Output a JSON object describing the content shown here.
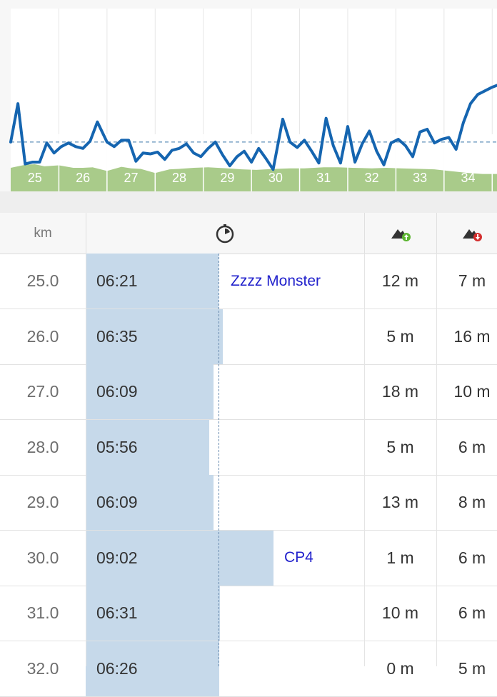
{
  "chart_data": {
    "type": "line",
    "x_tick_labels": [
      "25",
      "26",
      "27",
      "28",
      "29",
      "30",
      "31",
      "32",
      "33",
      "34"
    ],
    "xlim": [
      24.5,
      34.6
    ],
    "pace_series": {
      "x": [
        24.5,
        24.65,
        24.8,
        24.95,
        25.1,
        25.25,
        25.4,
        25.55,
        25.7,
        25.85,
        26.0,
        26.15,
        26.3,
        26.5,
        26.65,
        26.8,
        26.95,
        27.1,
        27.25,
        27.4,
        27.55,
        27.7,
        27.85,
        28.0,
        28.15,
        28.3,
        28.45,
        28.6,
        28.75,
        28.9,
        29.05,
        29.2,
        29.35,
        29.5,
        29.65,
        29.8,
        29.95,
        30.15,
        30.3,
        30.45,
        30.6,
        30.75,
        30.9,
        31.05,
        31.2,
        31.35,
        31.5,
        31.65,
        31.8,
        31.95,
        32.1,
        32.25,
        32.4,
        32.55,
        32.7,
        32.85,
        33.0,
        33.15,
        33.3,
        33.45,
        33.6,
        33.75,
        33.9,
        34.05,
        34.2,
        34.35,
        34.5,
        34.6
      ],
      "y": [
        0.46,
        0.88,
        0.22,
        0.24,
        0.24,
        0.45,
        0.34,
        0.41,
        0.45,
        0.41,
        0.39,
        0.47,
        0.68,
        0.46,
        0.41,
        0.48,
        0.48,
        0.25,
        0.34,
        0.33,
        0.35,
        0.27,
        0.37,
        0.39,
        0.44,
        0.34,
        0.3,
        0.39,
        0.46,
        0.32,
        0.2,
        0.3,
        0.36,
        0.24,
        0.39,
        0.28,
        0.16,
        0.71,
        0.46,
        0.4,
        0.48,
        0.36,
        0.23,
        0.72,
        0.42,
        0.23,
        0.63,
        0.24,
        0.44,
        0.58,
        0.36,
        0.21,
        0.45,
        0.49,
        0.42,
        0.3,
        0.57,
        0.6,
        0.45,
        0.49,
        0.51,
        0.38,
        0.67,
        0.88,
        0.98,
        1.02,
        1.06,
        1.08
      ],
      "color": "#1565b0",
      "reference_line": 0.46
    },
    "elevation_series": {
      "color": "#a9cb8a",
      "x": [
        24.5,
        24.8,
        25.0,
        25.2,
        25.5,
        25.8,
        26.0,
        26.2,
        26.5,
        26.8,
        27.0,
        27.2,
        27.5,
        27.8,
        28.0,
        28.3,
        28.6,
        29.0,
        29.3,
        29.6,
        30.0,
        30.3,
        30.6,
        31.0,
        31.3,
        31.6,
        32.0,
        32.3,
        32.6,
        33.0,
        33.3,
        33.6,
        34.0,
        34.3,
        34.6
      ],
      "y": [
        0.46,
        0.52,
        0.53,
        0.49,
        0.51,
        0.46,
        0.46,
        0.47,
        0.4,
        0.48,
        0.45,
        0.44,
        0.36,
        0.43,
        0.44,
        0.46,
        0.47,
        0.45,
        0.43,
        0.42,
        0.44,
        0.45,
        0.45,
        0.47,
        0.47,
        0.46,
        0.45,
        0.46,
        0.45,
        0.44,
        0.43,
        0.4,
        0.36,
        0.34,
        0.34
      ]
    },
    "grid": true
  },
  "table": {
    "header": {
      "km": "km",
      "pace_icon": "stopwatch-icon",
      "ascent_icon": "mountain-up-icon",
      "descent_icon": "mountain-down-icon"
    },
    "rows": [
      {
        "km": "25.0",
        "pace": "06:21",
        "ascent": "12 m",
        "descent": "7 m",
        "note": "Zzzz Monster",
        "bar": 0.306
      },
      {
        "km": "26.0",
        "pace": "06:35",
        "ascent": "5 m",
        "descent": "16 m",
        "note": "",
        "bar": 0.312
      },
      {
        "km": "27.0",
        "pace": "06:09",
        "ascent": "18 m",
        "descent": "10 m",
        "note": "",
        "bar": 0.299
      },
      {
        "km": "28.0",
        "pace": "05:56",
        "ascent": "5 m",
        "descent": "6 m",
        "note": "",
        "bar": 0.293
      },
      {
        "km": "29.0",
        "pace": "06:09",
        "ascent": "13 m",
        "descent": "8 m",
        "note": "",
        "bar": 0.299
      },
      {
        "km": "30.0",
        "pace": "09:02",
        "ascent": "1 m",
        "descent": "6 m",
        "note": "CP4",
        "bar": 0.383
      },
      {
        "km": "31.0",
        "pace": "06:31",
        "ascent": "10 m",
        "descent": "6 m",
        "note": "",
        "bar": 0.308
      },
      {
        "km": "32.0",
        "pace": "06:26",
        "ascent": "0 m",
        "descent": "5 m",
        "note": "",
        "bar": 0.307
      }
    ]
  },
  "colors": {
    "line": "#1565b0",
    "elevation": "#a9cb8a",
    "bar": "#c6d9ea",
    "note": "#2222cc",
    "up": "#5cb531",
    "down": "#d32f2f"
  }
}
